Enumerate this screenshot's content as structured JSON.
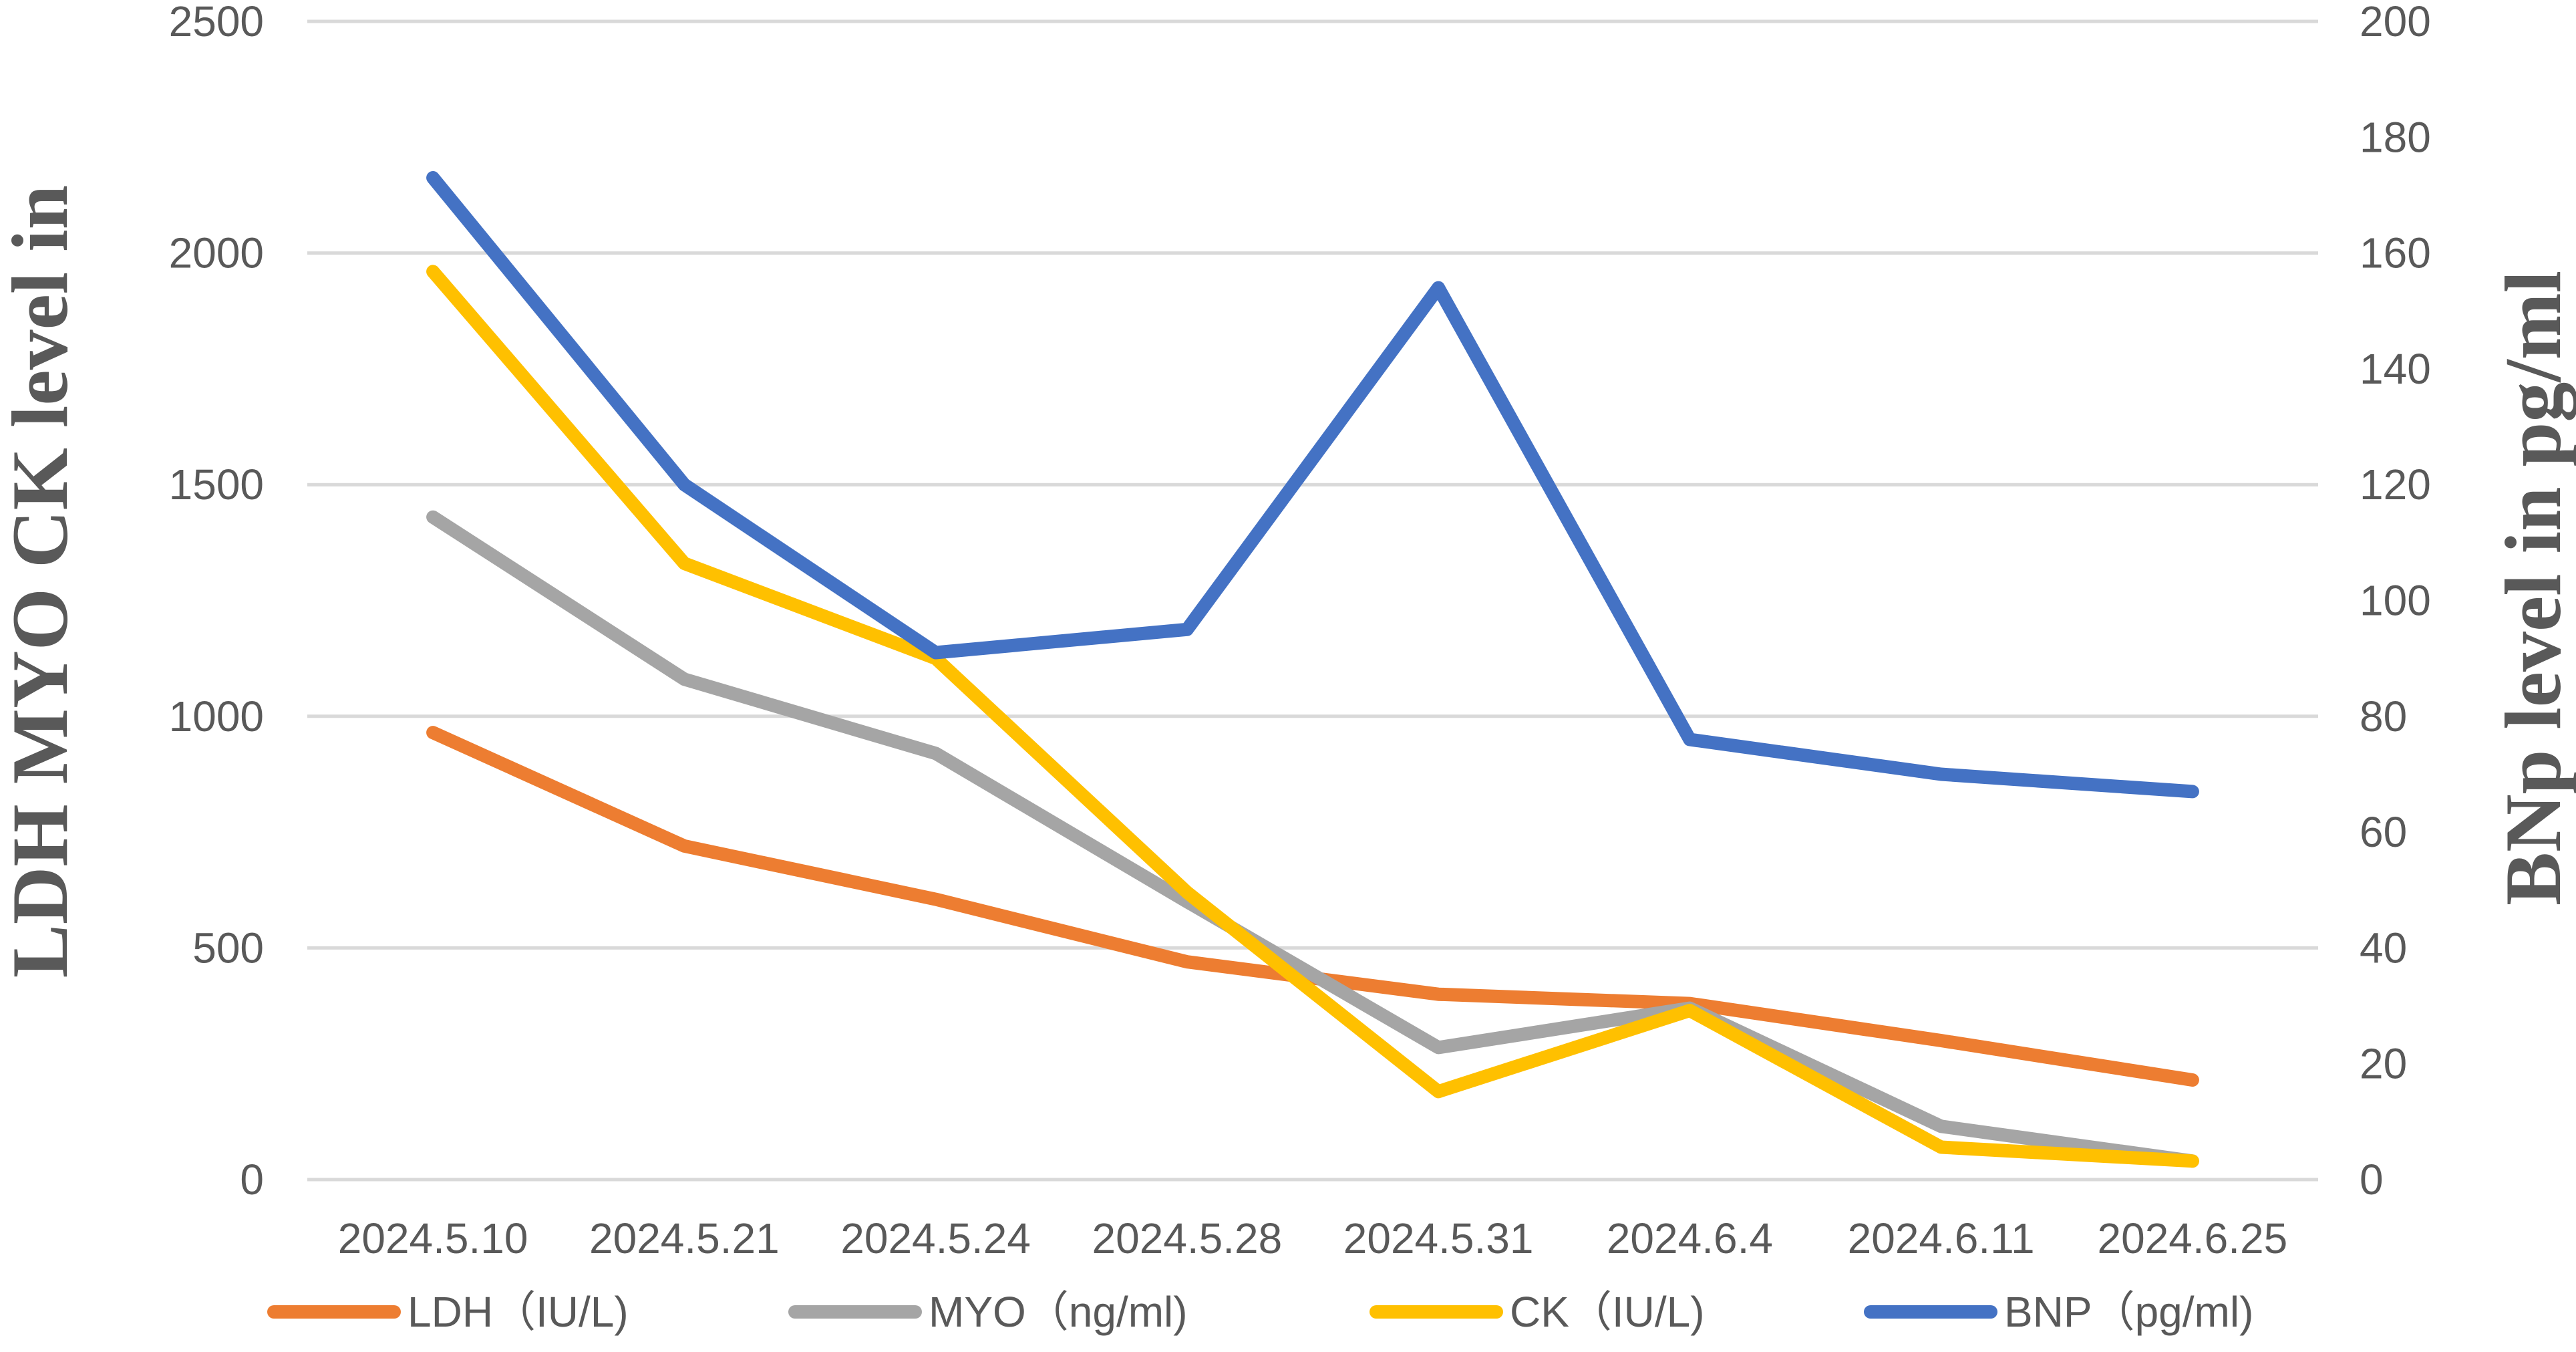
{
  "chart_data": {
    "type": "line",
    "categories": [
      "2024.5.10",
      "2024.5.21",
      "2024.5.24",
      "2024.5.28",
      "2024.5.31",
      "2024.6.4",
      "2024.6.11",
      "2024.6.25"
    ],
    "y_left": {
      "label": "LDH MYO CK level in",
      "lim": [
        0,
        2500
      ],
      "ticks": [
        "0",
        "500",
        "1000",
        "1500",
        "2000",
        "2500"
      ]
    },
    "y_right": {
      "label": "BNp level in pg/ml",
      "lim": [
        0,
        200
      ],
      "ticks": [
        "0",
        "20",
        "40",
        "60",
        "80",
        "100",
        "120",
        "140",
        "160",
        "180",
        "200"
      ]
    },
    "grid": true,
    "legend_position": "bottom",
    "series": [
      {
        "name": "LDH（IU/L)",
        "axis": "left",
        "color": "#ED7D31",
        "values": [
          965,
          720,
          605,
          470,
          400,
          380,
          300,
          215
        ]
      },
      {
        "name": "MYO（ng/ml)",
        "axis": "left",
        "color": "#A5A5A5",
        "values": [
          1430,
          1080,
          920,
          600,
          285,
          370,
          115,
          40
        ]
      },
      {
        "name": "CK（IU/L)",
        "axis": "left",
        "color": "#FFC000",
        "values": [
          1960,
          1330,
          1125,
          620,
          190,
          365,
          70,
          40
        ]
      },
      {
        "name": "BNP（pg/ml)",
        "axis": "right",
        "color": "#4472C4",
        "values": [
          173,
          120,
          91,
          95,
          154,
          76,
          70,
          67
        ]
      }
    ]
  }
}
